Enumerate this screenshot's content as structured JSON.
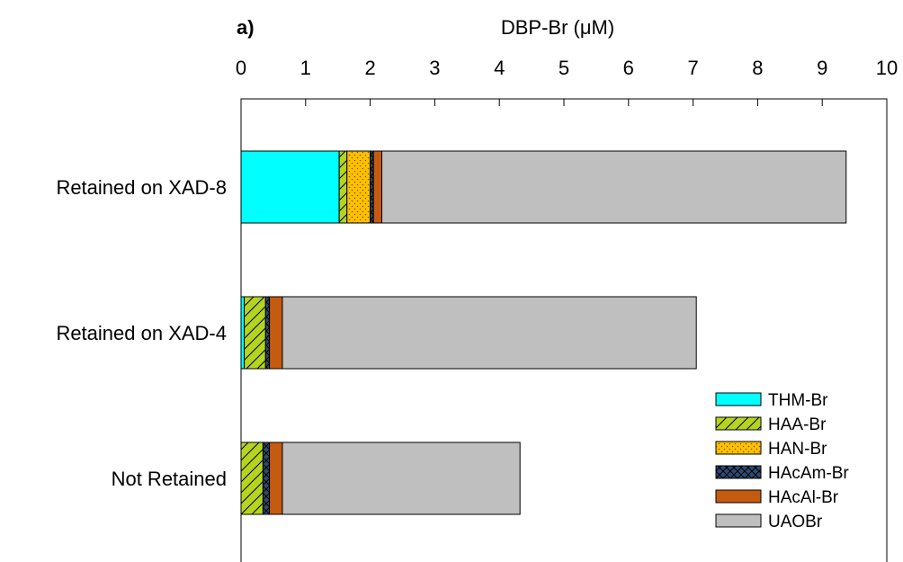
{
  "chart_data": {
    "type": "bar",
    "orientation": "horizontal",
    "stacked": true,
    "panel_label": "a)",
    "xlabel": "DBP-Br (μM)",
    "xlim": [
      0,
      10
    ],
    "x_ticks": [
      "0",
      "1",
      "2",
      "3",
      "4",
      "5",
      "6",
      "7",
      "8",
      "9",
      "10"
    ],
    "x_axis_position": "top",
    "grid": false,
    "legend_position": "bottom-right",
    "categories": [
      "Retained on XAD-8",
      "Retained on XAD-4",
      "Not Retained"
    ],
    "series": [
      {
        "name": "THM-Br",
        "values": [
          1.52,
          0.05,
          0.0
        ],
        "color": "#00FFFF",
        "pattern": "solid"
      },
      {
        "name": "HAA-Br",
        "values": [
          0.12,
          0.33,
          0.34
        ],
        "color": "#B5D41F",
        "pattern": "diagonal-hatch"
      },
      {
        "name": "HAN-Br",
        "values": [
          0.36,
          0.0,
          0.0
        ],
        "color": "#FFC000",
        "pattern": "dots"
      },
      {
        "name": "HAcAm-Br",
        "values": [
          0.05,
          0.06,
          0.1
        ],
        "color": "#2E4A73",
        "pattern": "crosshatch"
      },
      {
        "name": "HAcAl-Br",
        "values": [
          0.13,
          0.2,
          0.2
        ],
        "color": "#C55A11",
        "pattern": "solid"
      },
      {
        "name": "UAOBr",
        "values": [
          7.19,
          6.41,
          3.68
        ],
        "color": "#BFBFBF",
        "pattern": "solid"
      }
    ]
  }
}
